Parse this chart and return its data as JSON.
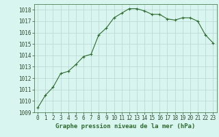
{
  "x": [
    0,
    1,
    2,
    3,
    4,
    5,
    6,
    7,
    8,
    9,
    10,
    11,
    12,
    13,
    14,
    15,
    16,
    17,
    18,
    19,
    20,
    21,
    22,
    23
  ],
  "y": [
    1009.4,
    1010.5,
    1011.2,
    1012.4,
    1012.6,
    1013.2,
    1013.9,
    1014.1,
    1015.8,
    1016.4,
    1017.3,
    1017.7,
    1018.1,
    1018.1,
    1017.9,
    1017.6,
    1017.6,
    1017.2,
    1017.1,
    1017.3,
    1017.3,
    1017.0,
    1015.8,
    1015.1
  ],
  "line_color": "#2d6a2d",
  "marker": "+",
  "marker_size": 3,
  "marker_lw": 0.8,
  "bg_color": "#d8f5f0",
  "grid_color": "#b8d4d0",
  "xlabel": "Graphe pression niveau de la mer (hPa)",
  "xlabel_fontsize": 6.5,
  "xlabel_fontweight": "bold",
  "ylim": [
    1009,
    1018.5
  ],
  "xlim": [
    -0.5,
    23.5
  ],
  "yticks": [
    1009,
    1010,
    1011,
    1012,
    1013,
    1014,
    1015,
    1016,
    1017,
    1018
  ],
  "xticks": [
    0,
    1,
    2,
    3,
    4,
    5,
    6,
    7,
    8,
    9,
    10,
    11,
    12,
    13,
    14,
    15,
    16,
    17,
    18,
    19,
    20,
    21,
    22,
    23
  ],
  "tick_fontsize": 5.5,
  "line_width": 0.8,
  "title_color": "#2d6a2d"
}
